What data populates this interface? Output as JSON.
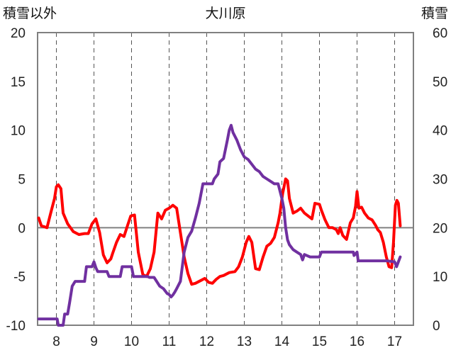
{
  "chart_data": {
    "type": "line",
    "title": "大川原",
    "left_axis": {
      "label": "積雪以外",
      "ticks": [
        20,
        15,
        10,
        5,
        0,
        -5,
        -10
      ],
      "range": [
        -10,
        20
      ]
    },
    "right_axis": {
      "label": "積雪",
      "ticks": [
        60,
        50,
        40,
        30,
        20,
        10,
        0
      ],
      "range": [
        0,
        60
      ]
    },
    "x_axis": {
      "ticks": [
        "8",
        "9",
        "10",
        "11",
        "12",
        "13",
        "14",
        "15",
        "16",
        "17"
      ],
      "range": [
        7.5,
        17.5
      ]
    },
    "grid": "dashed vertical at each x tick, solid horizontal at 0",
    "colors": {
      "red_series": "#ff0000",
      "purple_series": "#7030a0"
    },
    "series": [
      {
        "axis": "left",
        "color": "#ff0000",
        "points": [
          [
            7.53,
            1.0
          ],
          [
            7.6,
            0.2
          ],
          [
            7.75,
            0.0
          ],
          [
            7.85,
            1.5
          ],
          [
            7.95,
            3.0
          ],
          [
            8.0,
            4.2
          ],
          [
            8.05,
            4.4
          ],
          [
            8.12,
            4.0
          ],
          [
            8.18,
            1.5
          ],
          [
            8.3,
            0.4
          ],
          [
            8.45,
            -0.4
          ],
          [
            8.6,
            -0.7
          ],
          [
            8.75,
            -0.6
          ],
          [
            8.85,
            -0.6
          ],
          [
            8.95,
            0.4
          ],
          [
            9.05,
            0.9
          ],
          [
            9.15,
            -0.5
          ],
          [
            9.25,
            -2.8
          ],
          [
            9.35,
            -3.6
          ],
          [
            9.45,
            -3.2
          ],
          [
            9.5,
            -2.6
          ],
          [
            9.6,
            -1.5
          ],
          [
            9.7,
            -0.7
          ],
          [
            9.8,
            -0.9
          ],
          [
            9.9,
            0.3
          ],
          [
            9.98,
            1.2
          ],
          [
            10.08,
            1.3
          ],
          [
            10.18,
            -2.5
          ],
          [
            10.3,
            -4.8
          ],
          [
            10.4,
            -5.0
          ],
          [
            10.5,
            -4.2
          ],
          [
            10.6,
            -2.5
          ],
          [
            10.7,
            1.5
          ],
          [
            10.8,
            0.9
          ],
          [
            10.9,
            1.8
          ],
          [
            11.0,
            2.0
          ],
          [
            11.1,
            2.3
          ],
          [
            11.2,
            2.0
          ],
          [
            11.3,
            -0.5
          ],
          [
            11.4,
            -3.0
          ],
          [
            11.5,
            -4.7
          ],
          [
            11.6,
            -5.8
          ],
          [
            11.7,
            -5.7
          ],
          [
            11.85,
            -5.4
          ],
          [
            11.95,
            -5.2
          ],
          [
            12.05,
            -5.6
          ],
          [
            12.15,
            -5.7
          ],
          [
            12.25,
            -5.3
          ],
          [
            12.35,
            -5.0
          ],
          [
            12.45,
            -4.9
          ],
          [
            12.6,
            -4.6
          ],
          [
            12.75,
            -4.5
          ],
          [
            12.85,
            -4.0
          ],
          [
            12.95,
            -3.0
          ],
          [
            13.05,
            -1.5
          ],
          [
            13.12,
            -0.9
          ],
          [
            13.2,
            -1.5
          ],
          [
            13.3,
            -4.2
          ],
          [
            13.4,
            -4.3
          ],
          [
            13.5,
            -3.0
          ],
          [
            13.6,
            -1.9
          ],
          [
            13.7,
            -1.6
          ],
          [
            13.8,
            -1.0
          ],
          [
            13.9,
            0.5
          ],
          [
            13.95,
            1.5
          ],
          [
            14.02,
            3.5
          ],
          [
            14.1,
            5.0
          ],
          [
            14.15,
            4.8
          ],
          [
            14.2,
            3.0
          ],
          [
            14.3,
            1.5
          ],
          [
            14.4,
            1.7
          ],
          [
            14.5,
            2.0
          ],
          [
            14.6,
            1.5
          ],
          [
            14.7,
            1.2
          ],
          [
            14.8,
            0.9
          ],
          [
            14.88,
            2.5
          ],
          [
            15.0,
            2.4
          ],
          [
            15.05,
            1.8
          ],
          [
            15.15,
            0.8
          ],
          [
            15.25,
            0.0
          ],
          [
            15.35,
            0.0
          ],
          [
            15.45,
            -0.2
          ],
          [
            15.5,
            -0.6
          ],
          [
            15.55,
            0.0
          ],
          [
            15.62,
            -0.8
          ],
          [
            15.72,
            -1.2
          ],
          [
            15.82,
            0.5
          ],
          [
            15.9,
            1.0
          ],
          [
            15.96,
            2.2
          ],
          [
            16.0,
            3.7
          ],
          [
            16.05,
            2.0
          ],
          [
            16.12,
            2.1
          ],
          [
            16.2,
            1.5
          ],
          [
            16.3,
            1.0
          ],
          [
            16.4,
            0.8
          ],
          [
            16.5,
            0.2
          ],
          [
            16.55,
            -0.2
          ],
          [
            16.62,
            -0.5
          ],
          [
            16.7,
            -1.5
          ],
          [
            16.78,
            -3.0
          ],
          [
            16.85,
            -4.0
          ],
          [
            16.92,
            -4.1
          ],
          [
            16.97,
            -1.5
          ],
          [
            17.02,
            2.3
          ],
          [
            17.06,
            2.8
          ],
          [
            17.1,
            2.5
          ],
          [
            17.15,
            0.2
          ]
        ]
      },
      {
        "axis": "right",
        "color": "#7030a0",
        "points": [
          [
            7.53,
            1.3
          ],
          [
            7.6,
            1.3
          ],
          [
            7.7,
            1.3
          ],
          [
            7.8,
            1.3
          ],
          [
            7.9,
            1.3
          ],
          [
            8.02,
            1.3
          ],
          [
            8.05,
            0.0
          ],
          [
            8.18,
            0.0
          ],
          [
            8.22,
            2.3
          ],
          [
            8.3,
            2.3
          ],
          [
            8.35,
            4.5
          ],
          [
            8.42,
            8.0
          ],
          [
            8.5,
            9.0
          ],
          [
            8.55,
            9.0
          ],
          [
            8.6,
            9.0
          ],
          [
            8.75,
            9.0
          ],
          [
            8.8,
            12.0
          ],
          [
            8.95,
            12.0
          ],
          [
            9.0,
            13.0
          ],
          [
            9.05,
            11.8
          ],
          [
            9.1,
            11.0
          ],
          [
            9.2,
            11.0
          ],
          [
            9.35,
            11.0
          ],
          [
            9.4,
            10.0
          ],
          [
            9.6,
            10.0
          ],
          [
            9.7,
            10.0
          ],
          [
            9.75,
            12.0
          ],
          [
            9.85,
            12.0
          ],
          [
            10.0,
            12.0
          ],
          [
            10.05,
            10.0
          ],
          [
            10.15,
            10.0
          ],
          [
            10.3,
            10.0
          ],
          [
            10.42,
            10.0
          ],
          [
            10.48,
            9.8
          ],
          [
            10.6,
            9.8
          ],
          [
            10.75,
            8.0
          ],
          [
            10.85,
            7.5
          ],
          [
            10.95,
            6.5
          ],
          [
            11.0,
            6.3
          ],
          [
            11.05,
            5.8
          ],
          [
            11.1,
            6.2
          ],
          [
            11.15,
            6.8
          ],
          [
            11.2,
            7.5
          ],
          [
            11.3,
            9.0
          ],
          [
            11.4,
            15.0
          ],
          [
            11.5,
            18.0
          ],
          [
            11.6,
            19.3
          ],
          [
            11.7,
            22.0
          ],
          [
            11.8,
            25.0
          ],
          [
            11.9,
            29.0
          ],
          [
            12.0,
            29.0
          ],
          [
            12.1,
            29.0
          ],
          [
            12.15,
            29.0
          ],
          [
            12.2,
            30.0
          ],
          [
            12.3,
            31.0
          ],
          [
            12.35,
            33.5
          ],
          [
            12.45,
            34.2
          ],
          [
            12.55,
            38.0
          ],
          [
            12.6,
            40.0
          ],
          [
            12.65,
            41.0
          ],
          [
            12.7,
            39.5
          ],
          [
            12.8,
            38.0
          ],
          [
            12.9,
            36.0
          ],
          [
            13.0,
            34.5
          ],
          [
            13.1,
            34.0
          ],
          [
            13.2,
            33.0
          ],
          [
            13.3,
            32.0
          ],
          [
            13.4,
            31.5
          ],
          [
            13.5,
            30.5
          ],
          [
            13.6,
            30.0
          ],
          [
            13.7,
            29.5
          ],
          [
            13.8,
            29.0
          ],
          [
            13.9,
            29.0
          ],
          [
            14.0,
            26.0
          ],
          [
            14.05,
            24.0
          ],
          [
            14.1,
            20.0
          ],
          [
            14.15,
            17.5
          ],
          [
            14.2,
            16.5
          ],
          [
            14.3,
            15.5
          ],
          [
            14.4,
            15.0
          ],
          [
            14.5,
            14.5
          ],
          [
            14.55,
            13.4
          ],
          [
            14.6,
            14.5
          ],
          [
            14.75,
            14.0
          ],
          [
            15.0,
            14.0
          ],
          [
            15.05,
            15.0
          ],
          [
            15.5,
            15.0
          ],
          [
            15.9,
            15.0
          ],
          [
            15.92,
            14.3
          ],
          [
            16.0,
            15.0
          ],
          [
            16.03,
            13.2
          ],
          [
            16.2,
            13.2
          ],
          [
            16.5,
            13.2
          ],
          [
            16.8,
            13.2
          ],
          [
            17.0,
            13.0
          ],
          [
            17.05,
            12.0
          ],
          [
            17.1,
            13.0
          ],
          [
            17.15,
            14.0
          ]
        ]
      }
    ]
  }
}
